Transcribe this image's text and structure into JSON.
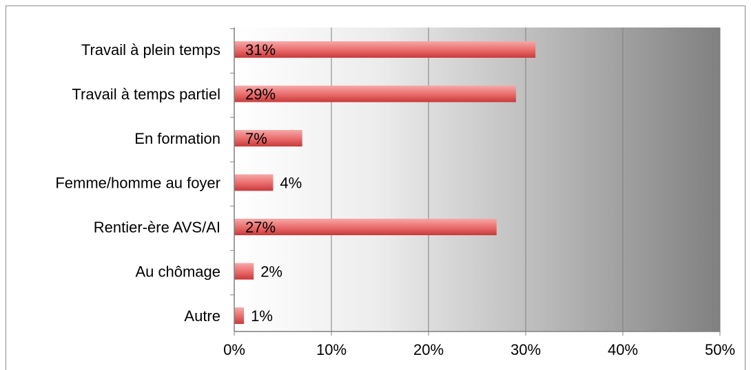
{
  "chart_data": {
    "type": "bar",
    "orientation": "horizontal",
    "title": "",
    "xlabel": "",
    "ylabel": "",
    "categories": [
      "Travail à plein temps",
      "Travail à temps partiel",
      "En formation",
      "Femme/homme au foyer",
      "Rentier-ère AVS/AI",
      "Au chômage",
      "Autre"
    ],
    "values": [
      31,
      29,
      7,
      4,
      27,
      2,
      1
    ],
    "data_labels": [
      "31%",
      "29%",
      "7%",
      "4%",
      "27%",
      "2%",
      "1%"
    ],
    "xlim": [
      0,
      50
    ],
    "x_ticks": [
      0,
      10,
      20,
      30,
      40,
      50
    ],
    "x_tick_labels": [
      "0%",
      "10%",
      "20%",
      "30%",
      "40%",
      "50%"
    ],
    "grid": "vertical",
    "legend": "none",
    "colors": {
      "bar_light": "#f7a8a8",
      "bar_mid": "#e96a6a",
      "bar_dark": "#c73a3a",
      "plot_bg_start": "#ffffff",
      "plot_bg_end": "#808080",
      "grid": "#7f7f7f"
    }
  }
}
